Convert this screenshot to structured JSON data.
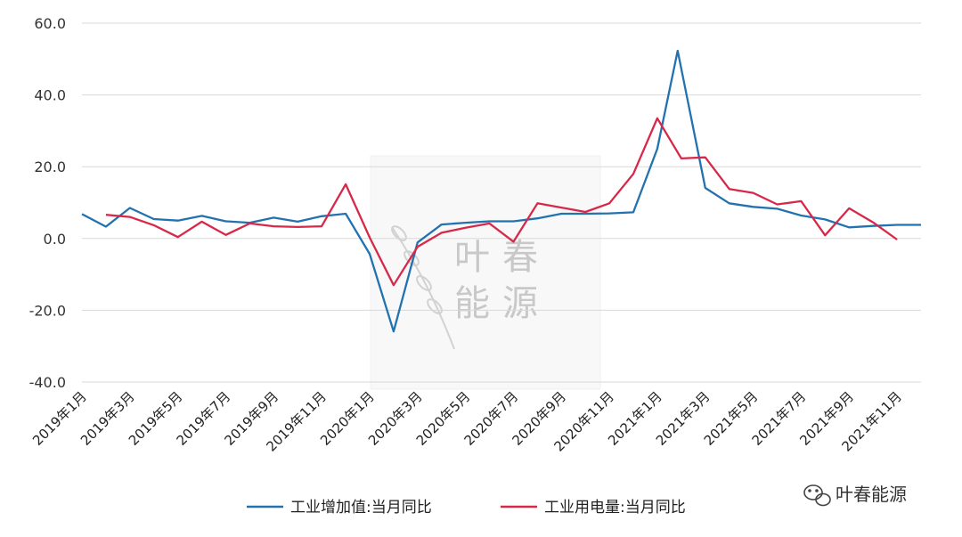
{
  "chart_data": {
    "type": "line",
    "ylim": [
      -40,
      60
    ],
    "yticks": [
      -40,
      -20,
      0,
      20,
      40,
      60
    ],
    "ytick_labels": [
      "-40.0",
      "-20.0",
      "0.0",
      "20.0",
      "40.0",
      "60.0"
    ],
    "x": [
      "2019年1月",
      "2019年2月",
      "2019年3月",
      "2019年4月",
      "2019年5月",
      "2019年6月",
      "2019年7月",
      "2019年8月",
      "2019年9月",
      "2019年10月",
      "2019年11月",
      "2019年12月",
      "2020年1月",
      "2020年2月",
      "2020年3月",
      "2020年4月",
      "2020年5月",
      "2020年6月",
      "2020年7月",
      "2020年8月",
      "2020年9月",
      "2020年10月",
      "2020年11月",
      "2020年12月",
      "2021年1月",
      "2021年2月",
      "2021年3月",
      "2021年4月",
      "2021年5月",
      "2021年6月",
      "2021年7月",
      "2021年8月",
      "2021年9月",
      "2021年10月",
      "2021年11月",
      "2021年12月"
    ],
    "xtick_labels": [
      "2019年1月",
      "2019年3月",
      "2019年5月",
      "2019年7月",
      "2019年9月",
      "2019年11月",
      "2020年1月",
      "2020年3月",
      "2020年5月",
      "2020年7月",
      "2020年9月",
      "2020年11月",
      "2021年1月",
      "2021年3月",
      "2021年5月",
      "2021年7月",
      "2021年9月",
      "2021年11月"
    ],
    "xtick_index": [
      0,
      2,
      4,
      6,
      8,
      10,
      12,
      14,
      16,
      18,
      20,
      22,
      24,
      26,
      28,
      30,
      32,
      34
    ],
    "series": [
      {
        "name": "工业增加值:当月同比",
        "color": "#2372b0",
        "points": [
          [
            0,
            6.8
          ],
          [
            1,
            3.3
          ],
          [
            2,
            8.5
          ],
          [
            3,
            5.4
          ],
          [
            4,
            5.0
          ],
          [
            5,
            6.3
          ],
          [
            6,
            4.8
          ],
          [
            7,
            4.4
          ],
          [
            8,
            5.8
          ],
          [
            9,
            4.7
          ],
          [
            10,
            6.2
          ],
          [
            11,
            6.9
          ],
          [
            12,
            -4.3
          ],
          [
            13,
            -25.9
          ],
          [
            14,
            -1.1
          ],
          [
            15,
            3.9
          ],
          [
            16,
            4.4
          ],
          [
            17,
            4.8
          ],
          [
            18,
            4.8
          ],
          [
            19,
            5.6
          ],
          [
            20,
            6.9
          ],
          [
            21,
            6.9
          ],
          [
            22,
            7.0
          ],
          [
            23,
            7.3
          ],
          [
            24,
            25.0
          ],
          [
            24.85,
            52.3
          ],
          [
            26,
            14.1
          ],
          [
            27,
            9.8
          ],
          [
            28,
            8.8
          ],
          [
            29,
            8.3
          ],
          [
            30,
            6.4
          ],
          [
            31,
            5.3
          ],
          [
            32,
            3.1
          ],
          [
            33,
            3.5
          ],
          [
            34,
            3.8
          ],
          [
            35,
            3.8
          ]
        ]
      },
      {
        "name": "工业用电量:当月同比",
        "color": "#d6294a",
        "points": [
          [
            1,
            6.6
          ],
          [
            2,
            6.0
          ],
          [
            3,
            3.7
          ],
          [
            4,
            0.4
          ],
          [
            5,
            4.7
          ],
          [
            6,
            1.0
          ],
          [
            7,
            4.2
          ],
          [
            8,
            3.4
          ],
          [
            9,
            3.2
          ],
          [
            10,
            3.4
          ],
          [
            11,
            15.1
          ],
          [
            12,
            0.3
          ],
          [
            13,
            -13.0
          ],
          [
            14,
            -2.3
          ],
          [
            15,
            1.6
          ],
          [
            16,
            3.0
          ],
          [
            17,
            4.2
          ],
          [
            18,
            -0.9
          ],
          [
            19,
            9.8
          ],
          [
            20,
            8.6
          ],
          [
            21,
            7.4
          ],
          [
            22,
            9.8
          ],
          [
            23,
            18.0
          ],
          [
            24,
            33.5
          ],
          [
            25,
            22.3
          ],
          [
            26,
            22.6
          ],
          [
            27,
            13.8
          ],
          [
            28,
            12.7
          ],
          [
            29,
            9.5
          ],
          [
            30,
            10.4
          ],
          [
            31,
            0.9
          ],
          [
            32,
            8.4
          ],
          [
            33,
            4.5
          ],
          [
            34,
            -0.3
          ]
        ]
      }
    ],
    "grid": "horizontal",
    "legend_position": "bottom-center",
    "title": "",
    "xlabel": "",
    "ylabel": ""
  },
  "watermark": {
    "line1": "叶春",
    "line2": "能源"
  },
  "brand": {
    "text": "叶春能源",
    "icon": "wechat-icon"
  }
}
